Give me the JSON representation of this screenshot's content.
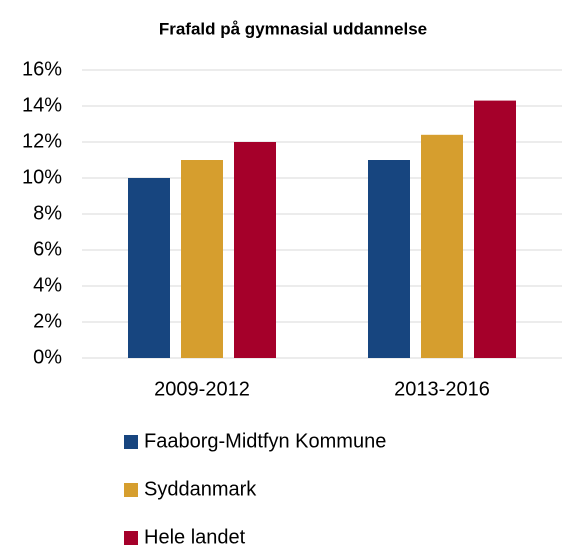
{
  "chart_data": {
    "type": "bar",
    "title": "Frafald på gymnasial uddannelse",
    "categories": [
      "2009-2012",
      "2013-2016"
    ],
    "series": [
      {
        "name": "Faaborg-Midtfyn Kommune",
        "color": "#17457f",
        "values": [
          10,
          11
        ]
      },
      {
        "name": "Syddanmark",
        "color": "#d69e2e",
        "values": [
          11,
          12.4
        ]
      },
      {
        "name": "Hele landet",
        "color": "#a5002a",
        "values": [
          12,
          14.3
        ]
      }
    ],
    "ylim": [
      0,
      16
    ],
    "yticks": [
      {
        "value": 0,
        "label": "0%"
      },
      {
        "value": 2,
        "label": "2%"
      },
      {
        "value": 4,
        "label": "4%"
      },
      {
        "value": 6,
        "label": "6%"
      },
      {
        "value": 8,
        "label": "8%"
      },
      {
        "value": 10,
        "label": "10%"
      },
      {
        "value": 12,
        "label": "12%"
      },
      {
        "value": 14,
        "label": "14%"
      },
      {
        "value": 16,
        "label": "16%"
      }
    ],
    "grid": true,
    "legend": "bottom"
  }
}
